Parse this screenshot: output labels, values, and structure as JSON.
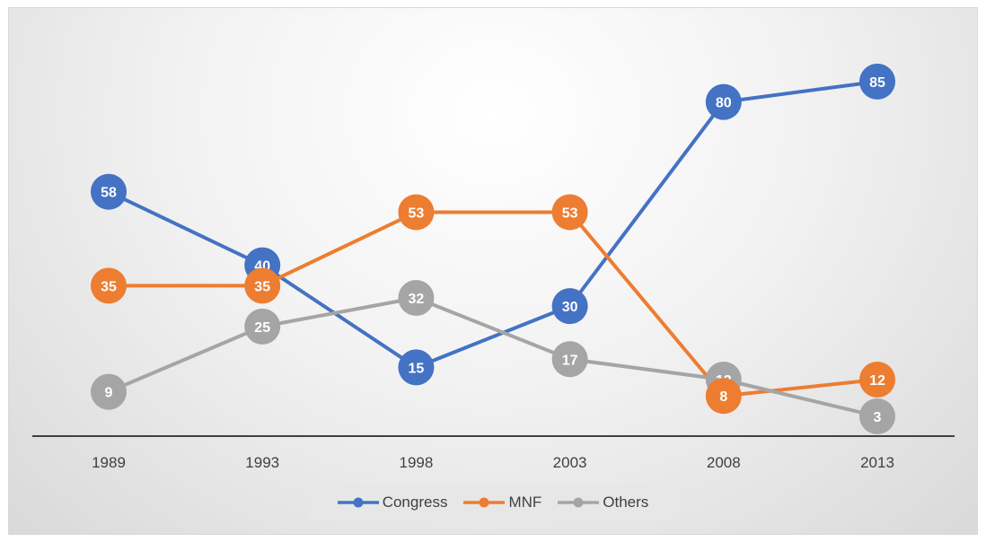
{
  "chart_data": {
    "type": "line",
    "title": "",
    "xlabel": "",
    "ylabel": "",
    "categories": [
      "1989",
      "1993",
      "1998",
      "2003",
      "2008",
      "2013"
    ],
    "ylim": [
      0,
      90
    ],
    "grid": false,
    "legend_position": "bottom",
    "series": [
      {
        "name": "Congress",
        "color": "#4472C4",
        "values": [
          58,
          40,
          15,
          30,
          80,
          85
        ]
      },
      {
        "name": "MNF",
        "color": "#ED7D31",
        "values": [
          35,
          35,
          53,
          53,
          8,
          12
        ]
      },
      {
        "name": "Others",
        "color": "#A5A5A5",
        "values": [
          9,
          25,
          32,
          17,
          12,
          3
        ]
      }
    ]
  }
}
